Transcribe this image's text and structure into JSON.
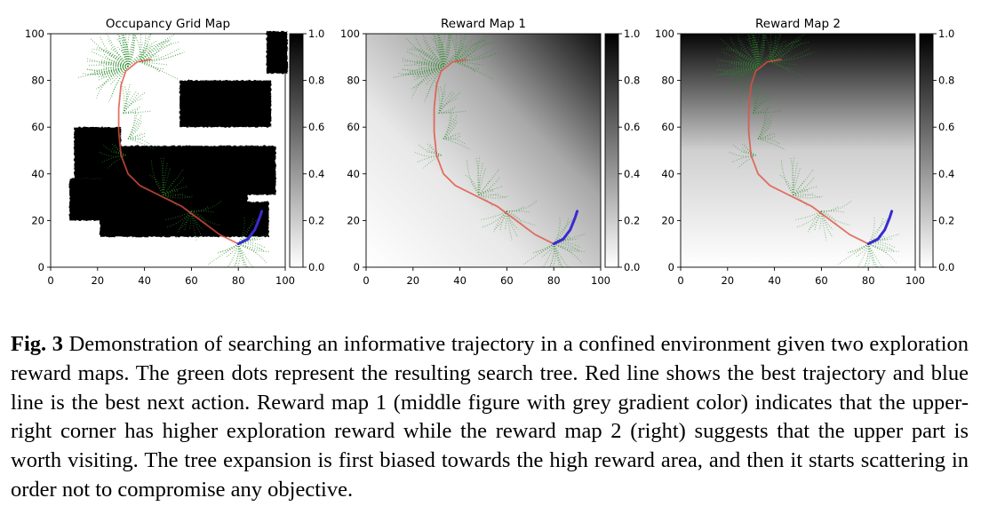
{
  "figure": {
    "panels": [
      {
        "title": "Occupancy Grid Map",
        "background": "occupancy",
        "colorbar_ticks": [
          "0.0",
          "0.2",
          "0.4",
          "0.6",
          "0.8",
          "1.0"
        ]
      },
      {
        "title": "Reward Map 1",
        "background": "gradient-upper-right",
        "colorbar_ticks": [
          "0.0",
          "0.2",
          "0.4",
          "0.6",
          "0.8",
          "1.0"
        ]
      },
      {
        "title": "Reward Map 2",
        "background": "gradient-top",
        "colorbar_ticks": [
          "0.0",
          "0.2",
          "0.4",
          "0.6",
          "0.8",
          "1.0"
        ]
      }
    ],
    "x_ticks": [
      "0",
      "20",
      "40",
      "60",
      "80",
      "100"
    ],
    "y_ticks": [
      "0",
      "20",
      "40",
      "60",
      "80",
      "100"
    ],
    "axis_range": [
      0,
      100
    ],
    "colors": {
      "tree": "#2e8b2e",
      "best_trajectory": "#e05040",
      "next_action": "#3a2ad0",
      "obstacle": "#000000"
    },
    "obstacles": [
      [
        8,
        84,
        20,
        38
      ],
      [
        21,
        93,
        13,
        28
      ],
      [
        22,
        96,
        31,
        52
      ],
      [
        10,
        30,
        38,
        60
      ],
      [
        37,
        72,
        32,
        50
      ],
      [
        55,
        94,
        60,
        80
      ],
      [
        92,
        101,
        83,
        101
      ]
    ],
    "best_trajectory": [
      [
        80,
        10
      ],
      [
        72,
        14
      ],
      [
        64,
        20
      ],
      [
        56,
        26
      ],
      [
        46,
        31
      ],
      [
        38,
        35
      ],
      [
        33,
        40
      ],
      [
        30,
        48
      ],
      [
        29,
        58
      ],
      [
        29,
        68
      ],
      [
        30,
        78
      ],
      [
        32,
        84
      ],
      [
        37,
        88
      ],
      [
        43,
        89
      ]
    ],
    "next_action": [
      [
        80,
        10
      ],
      [
        84,
        12
      ],
      [
        87,
        16
      ],
      [
        89,
        21
      ],
      [
        90,
        24
      ]
    ]
  },
  "caption": {
    "label": "Fig. 3",
    "text": "Demonstration of searching an informative trajectory in a confined environment given two exploration reward maps. The green dots represent the resulting search tree. Red line shows the best trajectory and blue line is the best next action. Reward map 1 (middle figure with grey gradient color) indicates that the upper-right corner has higher exploration reward while the reward map 2 (right) suggests that the upper part is worth visiting. The tree expansion is first biased towards the high reward area, and then it starts scattering in order not to compromise any objective."
  }
}
